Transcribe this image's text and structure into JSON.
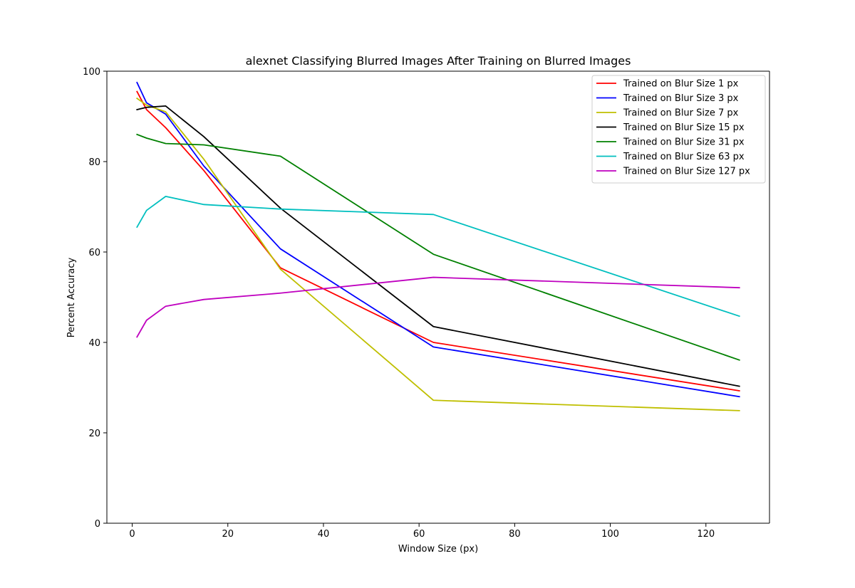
{
  "chart_data": {
    "type": "line",
    "title": "alexnet Classifying Blurred Images After Training on Blurred Images",
    "xlabel": "Window Size (px)",
    "ylabel": "Percent Accuracy",
    "xlim": [
      -5.3,
      133.3
    ],
    "ylim": [
      0,
      100
    ],
    "xticks": [
      0,
      20,
      40,
      60,
      80,
      100,
      120
    ],
    "yticks": [
      0,
      20,
      40,
      60,
      80,
      100
    ],
    "grid": false,
    "legend_position": "top-right",
    "x": [
      1,
      3,
      7,
      15,
      31,
      63,
      127
    ],
    "series": [
      {
        "name": "Trained on Blur Size 1 px",
        "color": "#ff0000",
        "values": [
          95.5,
          91.5,
          87.5,
          78.0,
          56.5,
          40.0,
          29.3
        ]
      },
      {
        "name": "Trained on Blur Size 3 px",
        "color": "#0000ff",
        "values": [
          97.5,
          93.0,
          90.5,
          79.0,
          60.7,
          39.0,
          28.0
        ]
      },
      {
        "name": "Trained on Blur Size 7 px",
        "color": "#bfbf00",
        "values": [
          94.0,
          92.5,
          91.0,
          80.5,
          56.2,
          27.2,
          24.9
        ]
      },
      {
        "name": "Trained on Blur Size 15 px",
        "color": "#000000",
        "values": [
          91.5,
          92.0,
          92.3,
          85.5,
          69.7,
          43.5,
          30.3
        ]
      },
      {
        "name": "Trained on Blur Size 31 px",
        "color": "#008000",
        "values": [
          86.0,
          85.2,
          84.0,
          83.7,
          81.2,
          59.5,
          36.1
        ]
      },
      {
        "name": "Trained on Blur Size 63 px",
        "color": "#00bfbf",
        "values": [
          65.5,
          69.2,
          72.3,
          70.5,
          69.5,
          68.3,
          45.8
        ]
      },
      {
        "name": "Trained on Blur Size 127 px",
        "color": "#bf00bf",
        "values": [
          41.2,
          44.9,
          48.0,
          49.5,
          50.9,
          54.4,
          52.1
        ]
      }
    ]
  }
}
